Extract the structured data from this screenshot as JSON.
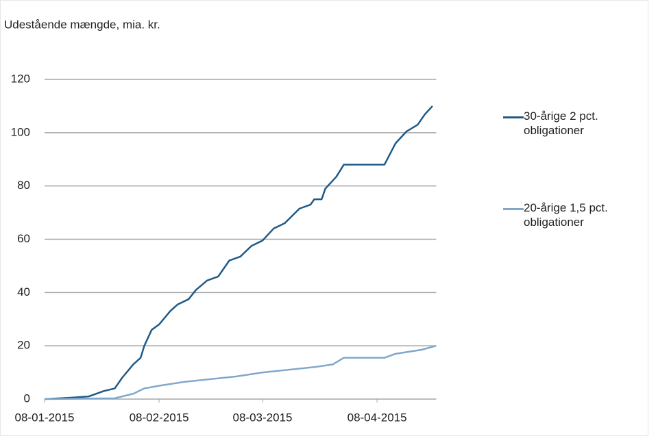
{
  "chart_data": {
    "type": "line",
    "title": "Udestående mængde, mia. kr.",
    "xlim": [
      "08-01-2015",
      "24-04-2015"
    ],
    "xticks": [
      "08-01-2015",
      "08-02-2015",
      "08-03-2015",
      "08-04-2015"
    ],
    "ylim": [
      0,
      120
    ],
    "yticks": [
      0,
      20,
      40,
      60,
      80,
      100,
      120
    ],
    "grid": true,
    "series": [
      {
        "name": "30-årige 2 pct. obligationer",
        "color": "#1f5a87",
        "x": [
          "08-01-2015",
          "15-01-2015",
          "20-01-2015",
          "24-01-2015",
          "27-01-2015",
          "29-01-2015",
          "01-02-2015",
          "03-02-2015",
          "04-02-2015",
          "06-02-2015",
          "08-02-2015",
          "11-02-2015",
          "13-02-2015",
          "16-02-2015",
          "18-02-2015",
          "21-02-2015",
          "24-02-2015",
          "27-02-2015",
          "02-03-2015",
          "05-03-2015",
          "08-03-2015",
          "11-03-2015",
          "14-03-2015",
          "18-03-2015",
          "21-03-2015",
          "22-03-2015",
          "24-03-2015",
          "25-03-2015",
          "28-03-2015",
          "30-03-2015",
          "05-04-2015",
          "10-04-2015",
          "13-04-2015",
          "16-04-2015",
          "19-04-2015",
          "21-04-2015",
          "23-04-2015"
        ],
        "values": [
          0,
          0.5,
          1,
          3,
          4,
          8,
          13,
          15.5,
          20,
          26,
          28,
          33,
          35.5,
          37.5,
          41,
          44.5,
          46,
          52,
          53.5,
          57.5,
          59.5,
          64,
          66,
          71.5,
          73,
          75,
          75,
          79,
          83.5,
          88,
          88,
          88,
          96,
          100.5,
          103,
          107,
          110
        ]
      },
      {
        "name": "20-årige 1,5 pct. obligationer",
        "color": "#7fa7cb",
        "x": [
          "08-01-2015",
          "27-01-2015",
          "29-01-2015",
          "01-02-2015",
          "04-02-2015",
          "08-02-2015",
          "15-02-2015",
          "22-02-2015",
          "01-03-2015",
          "08-03-2015",
          "15-03-2015",
          "22-03-2015",
          "27-03-2015",
          "30-03-2015",
          "10-04-2015",
          "13-04-2015",
          "20-04-2015",
          "24-04-2015"
        ],
        "values": [
          0,
          0.3,
          1,
          2,
          4,
          5,
          6.5,
          7.5,
          8.5,
          10,
          11,
          12,
          13,
          15.5,
          15.5,
          17,
          18.5,
          20
        ]
      }
    ]
  }
}
